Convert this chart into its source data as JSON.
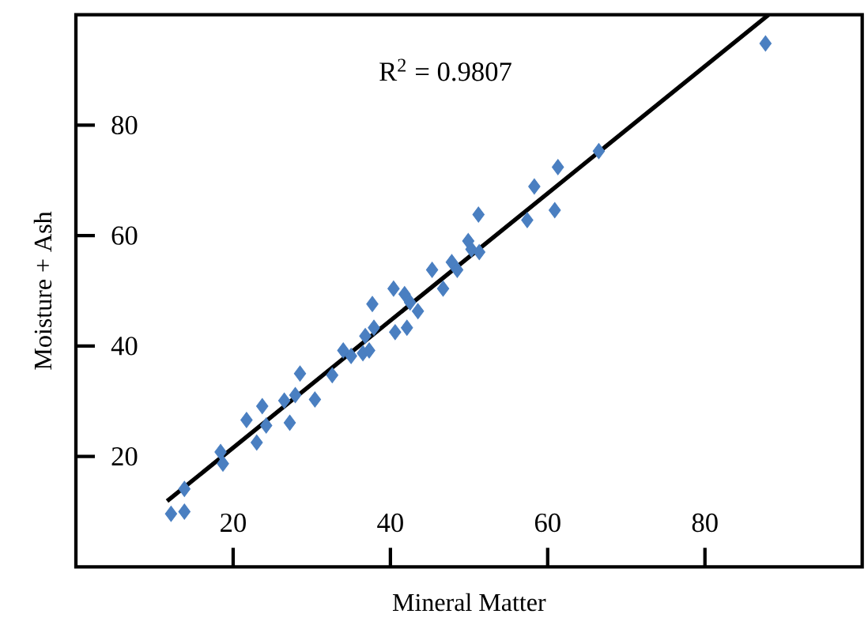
{
  "chart_data": {
    "type": "scatter",
    "xlabel": "Mineral Matter",
    "ylabel": "Moisture + Ash",
    "annotations": [
      "R$^{2}$ = 0.9807"
    ],
    "xlim": [
      0,
      100
    ],
    "ylim": [
      0,
      100
    ],
    "xticks": [
      20,
      40,
      60,
      80
    ],
    "yticks": [
      20,
      40,
      60,
      80
    ],
    "marker": "diamond",
    "series": [
      {
        "color": "#4a7fc1",
        "x": [
          12.1,
          13.8,
          13.8,
          18.4,
          18.7,
          21.7,
          23.0,
          23.7,
          24.2,
          26.5,
          27.2,
          28.5,
          27.9,
          30.4,
          32.6,
          34.0,
          35.0,
          36.5,
          37.7,
          36.8,
          37.9,
          37.3,
          40.4,
          40.6,
          41.8,
          42.1,
          43.5,
          42.5,
          45.3,
          46.7,
          47.8,
          48.5,
          49.9,
          50.3,
          51.3,
          51.2,
          57.4,
          58.3,
          60.9,
          61.3,
          66.5,
          87.7
        ],
        "values": [
          9.6,
          10.0,
          14.1,
          20.8,
          18.7,
          26.6,
          22.5,
          29.1,
          25.6,
          30.1,
          26.1,
          35.0,
          31.1,
          30.3,
          34.7,
          39.2,
          38.2,
          38.7,
          47.6,
          41.8,
          43.3,
          39.2,
          50.4,
          42.5,
          49.4,
          43.3,
          46.3,
          47.9,
          53.8,
          50.4,
          55.2,
          53.8,
          59.0,
          57.5,
          57.0,
          63.8,
          62.8,
          68.9,
          64.6,
          72.4,
          75.3,
          94.8
        ]
      },
      {
        "type": "line",
        "marker": "none",
        "color": "#000000",
        "x": [
          11.6,
          88.1
        ],
        "values": [
          11.9,
          100.0
        ]
      }
    ]
  }
}
